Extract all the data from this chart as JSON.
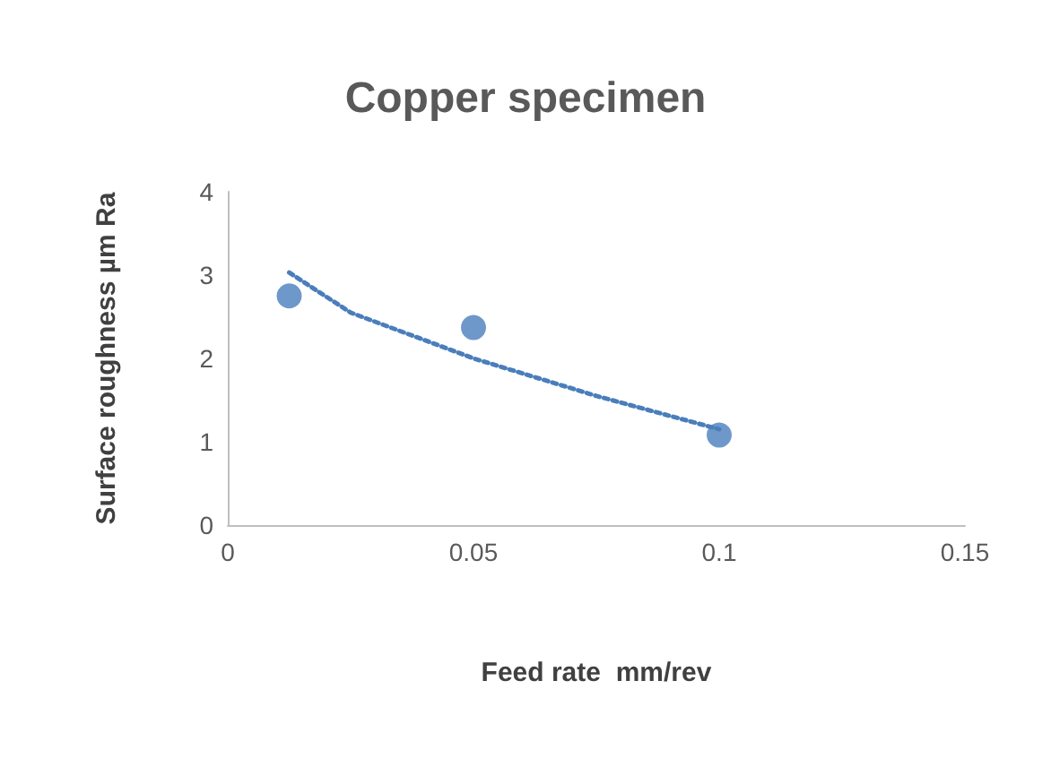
{
  "chart_data": {
    "type": "scatter",
    "title": "Copper specimen",
    "xlabel": "Feed rate  mm/rev",
    "ylabel": "Surface roughness µm Ra",
    "xlim": [
      0,
      0.15
    ],
    "xticks": [
      0,
      0.05,
      0.1,
      0.15
    ],
    "ylim": [
      0,
      4
    ],
    "yticks": [
      0,
      1,
      2,
      3,
      4
    ],
    "grid": false,
    "marker": "circle",
    "series": [
      {
        "color": "#4a7ebb",
        "x": [
          0.0125,
          0.05,
          0.1
        ],
        "values": [
          2.75,
          2.37,
          1.08
        ]
      },
      {
        "type": "line",
        "color": "#4a7ebb",
        "line_style": "dotted",
        "marker": "none",
        "x": [
          0.0125,
          0.025,
          0.05,
          0.075,
          0.1
        ],
        "values": [
          3.03,
          2.55,
          2.0,
          1.55,
          1.15
        ]
      }
    ]
  }
}
